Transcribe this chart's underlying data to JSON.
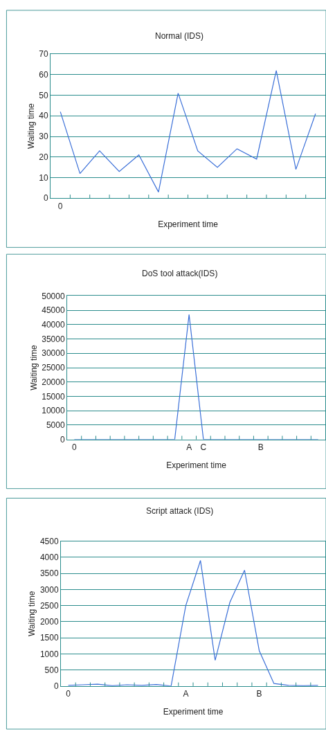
{
  "chart_data": [
    {
      "type": "line",
      "title": "Normal (IDS)",
      "xlabel": "Experiment time",
      "ylabel": "Waiting time",
      "categories": [
        "0",
        null,
        null,
        null,
        null,
        null,
        null,
        null,
        null,
        null,
        null,
        null,
        null,
        null
      ],
      "values": [
        42,
        12,
        23,
        13,
        21,
        3,
        51,
        23,
        15,
        24,
        19,
        62,
        14,
        41
      ],
      "color": "#3a6fd8",
      "ylim": [
        0,
        70
      ],
      "yticks": [
        0,
        10,
        20,
        30,
        40,
        50,
        60,
        70
      ],
      "grid": "y"
    },
    {
      "type": "line",
      "title": "DoS tool attack(IDS)",
      "xlabel": "Experiment time",
      "ylabel": "Waiting time",
      "categories": [
        "0",
        null,
        null,
        null,
        null,
        null,
        null,
        null,
        "A",
        "C",
        null,
        null,
        null,
        "B",
        null,
        null,
        null,
        null
      ],
      "values": [
        0,
        0,
        0,
        0,
        0,
        0,
        0,
        0,
        43500,
        0,
        0,
        0,
        0,
        0,
        0,
        0,
        0,
        0
      ],
      "color": "#3a6fd8",
      "ylim": [
        0,
        50000
      ],
      "yticks": [
        0,
        5000,
        10000,
        15000,
        20000,
        25000,
        30000,
        35000,
        40000,
        45000,
        50000
      ],
      "grid": "y"
    },
    {
      "type": "line",
      "title": "Script attack (IDS)",
      "xlabel": "Experiment time",
      "ylabel": "Waiting time",
      "categories": [
        "0",
        null,
        null,
        null,
        null,
        null,
        null,
        null,
        "A",
        null,
        null,
        null,
        null,
        "B",
        null,
        null,
        null,
        null
      ],
      "values": [
        20,
        40,
        60,
        10,
        40,
        20,
        50,
        0,
        2500,
        3900,
        800,
        2600,
        3600,
        1100,
        80,
        20,
        10,
        20
      ],
      "color": "#3a6fd8",
      "ylim": [
        0,
        4500
      ],
      "yticks": [
        0,
        500,
        1000,
        1500,
        2000,
        2500,
        3000,
        3500,
        4000,
        4500
      ],
      "grid": "y"
    }
  ]
}
